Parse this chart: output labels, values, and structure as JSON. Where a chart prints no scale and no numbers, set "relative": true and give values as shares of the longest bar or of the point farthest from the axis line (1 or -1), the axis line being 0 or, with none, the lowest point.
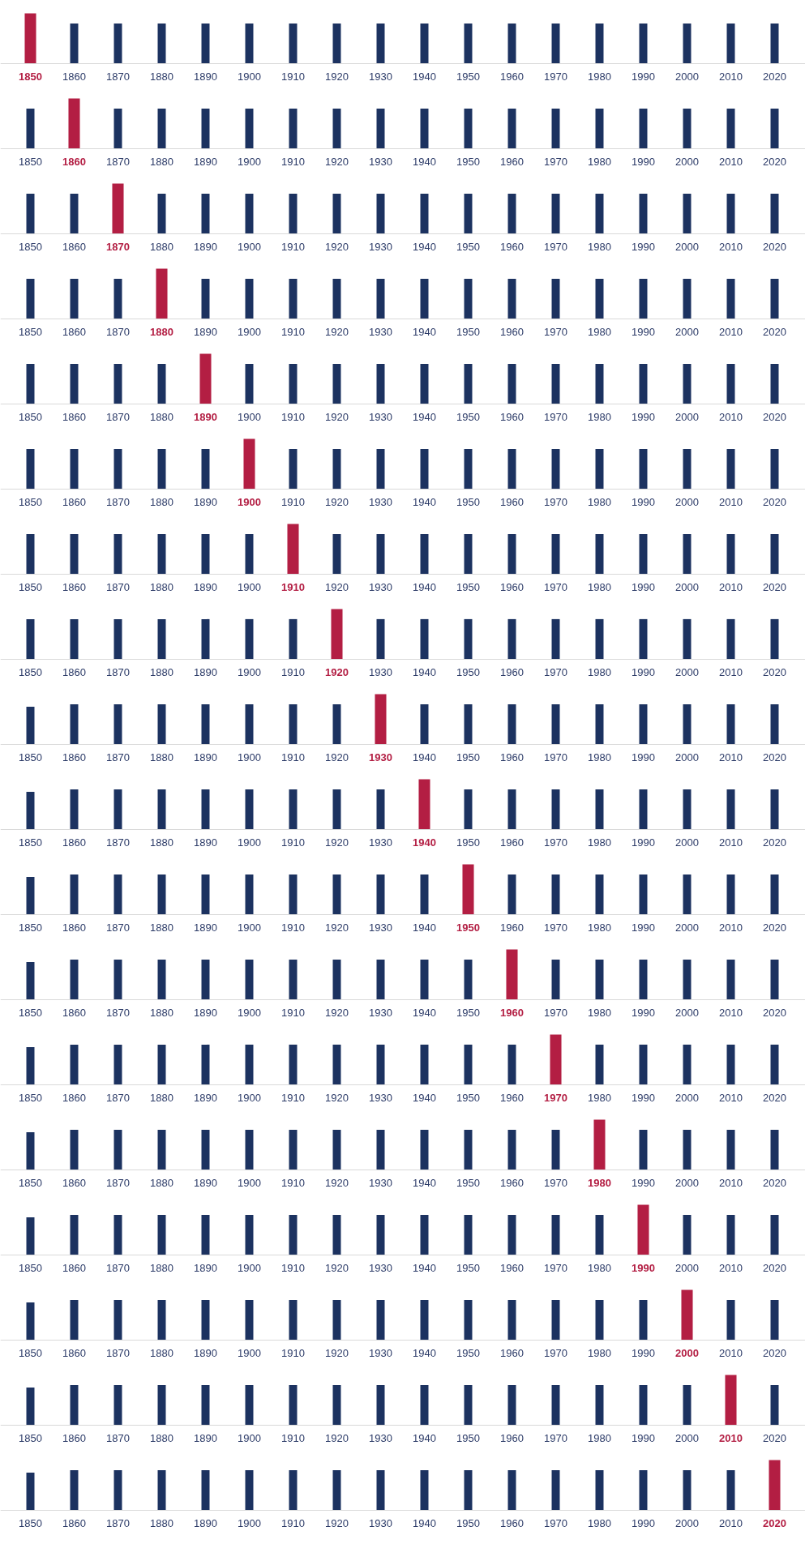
{
  "chart_data": [
    {
      "type": "bar",
      "relative": true,
      "categories": [
        "1850",
        "1860",
        "1870",
        "1880",
        "1890",
        "1900",
        "1910",
        "1920",
        "1930",
        "1940",
        "1950",
        "1960",
        "1970",
        "1980",
        "1990",
        "2000",
        "2010",
        "2020"
      ],
      "values": [
        1,
        0.8,
        0.8,
        0.8,
        0.8,
        0.8,
        0.8,
        0.8,
        0.8,
        0.8,
        0.8,
        0.8,
        0.8,
        0.8,
        0.8,
        0.8,
        0.8,
        0.8
      ],
      "colors": [
        "#b31e43",
        "#1c3260",
        "#1c3260",
        "#1c3260",
        "#1c3260",
        "#1c3260",
        "#1c3260",
        "#1c3260",
        "#1c3260",
        "#1c3260",
        "#1c3260",
        "#1c3260",
        "#1c3260",
        "#1c3260",
        "#1c3260",
        "#1c3260",
        "#1c3260",
        "#1c3260"
      ]
    },
    {
      "type": "bar",
      "relative": true,
      "categories": [
        "1850",
        "1860",
        "1870",
        "1880",
        "1890",
        "1900",
        "1910",
        "1920",
        "1930",
        "1940",
        "1950",
        "1960",
        "1970",
        "1980",
        "1990",
        "2000",
        "2010",
        "2020"
      ],
      "values": [
        0.8,
        1,
        0.8,
        0.8,
        0.8,
        0.8,
        0.8,
        0.8,
        0.8,
        0.8,
        0.8,
        0.8,
        0.8,
        0.8,
        0.8,
        0.8,
        0.8,
        0.8
      ],
      "colors": [
        "#1c3260",
        "#b31e43",
        "#1c3260",
        "#1c3260",
        "#1c3260",
        "#1c3260",
        "#1c3260",
        "#1c3260",
        "#1c3260",
        "#1c3260",
        "#1c3260",
        "#1c3260",
        "#1c3260",
        "#1c3260",
        "#1c3260",
        "#1c3260",
        "#1c3260",
        "#1c3260"
      ]
    },
    {
      "type": "bar",
      "relative": true,
      "categories": [
        "1850",
        "1860",
        "1870",
        "1880",
        "1890",
        "1900",
        "1910",
        "1920",
        "1930",
        "1940",
        "1950",
        "1960",
        "1970",
        "1980",
        "1990",
        "2000",
        "2010",
        "2020"
      ],
      "values": [
        0.8,
        0.8,
        1,
        0.8,
        0.8,
        0.8,
        0.8,
        0.8,
        0.8,
        0.8,
        0.8,
        0.8,
        0.8,
        0.8,
        0.8,
        0.8,
        0.8,
        0.8
      ],
      "colors": [
        "#1c3260",
        "#1c3260",
        "#b31e43",
        "#1c3260",
        "#1c3260",
        "#1c3260",
        "#1c3260",
        "#1c3260",
        "#1c3260",
        "#1c3260",
        "#1c3260",
        "#1c3260",
        "#1c3260",
        "#1c3260",
        "#1c3260",
        "#1c3260",
        "#1c3260",
        "#1c3260"
      ]
    },
    {
      "type": "bar",
      "relative": true,
      "categories": [
        "1850",
        "1860",
        "1870",
        "1880",
        "1890",
        "1900",
        "1910",
        "1920",
        "1930",
        "1940",
        "1950",
        "1960",
        "1970",
        "1980",
        "1990",
        "2000",
        "2010",
        "2020"
      ],
      "values": [
        0.8,
        0.8,
        0.8,
        1,
        0.8,
        0.8,
        0.8,
        0.8,
        0.8,
        0.8,
        0.8,
        0.8,
        0.8,
        0.8,
        0.8,
        0.8,
        0.8,
        0.8
      ],
      "colors": [
        "#1c3260",
        "#1c3260",
        "#1c3260",
        "#b31e43",
        "#1c3260",
        "#1c3260",
        "#1c3260",
        "#1c3260",
        "#1c3260",
        "#1c3260",
        "#1c3260",
        "#1c3260",
        "#1c3260",
        "#1c3260",
        "#1c3260",
        "#1c3260",
        "#1c3260",
        "#1c3260"
      ]
    },
    {
      "type": "bar",
      "relative": true,
      "categories": [
        "1850",
        "1860",
        "1870",
        "1880",
        "1890",
        "1900",
        "1910",
        "1920",
        "1930",
        "1940",
        "1950",
        "1960",
        "1970",
        "1980",
        "1990",
        "2000",
        "2010",
        "2020"
      ],
      "values": [
        0.8,
        0.8,
        0.8,
        0.8,
        1,
        0.8,
        0.8,
        0.8,
        0.8,
        0.8,
        0.8,
        0.8,
        0.8,
        0.8,
        0.8,
        0.8,
        0.8,
        0.8
      ],
      "colors": [
        "#1c3260",
        "#1c3260",
        "#1c3260",
        "#1c3260",
        "#b31e43",
        "#1c3260",
        "#1c3260",
        "#1c3260",
        "#1c3260",
        "#1c3260",
        "#1c3260",
        "#1c3260",
        "#1c3260",
        "#1c3260",
        "#1c3260",
        "#1c3260",
        "#1c3260",
        "#1c3260"
      ]
    },
    {
      "type": "bar",
      "relative": true,
      "categories": [
        "1850",
        "1860",
        "1870",
        "1880",
        "1890",
        "1900",
        "1910",
        "1920",
        "1930",
        "1940",
        "1950",
        "1960",
        "1970",
        "1980",
        "1990",
        "2000",
        "2010",
        "2020"
      ],
      "values": [
        0.8,
        0.8,
        0.8,
        0.8,
        0.8,
        1,
        0.8,
        0.8,
        0.8,
        0.8,
        0.8,
        0.8,
        0.8,
        0.8,
        0.8,
        0.8,
        0.8,
        0.8
      ],
      "colors": [
        "#1c3260",
        "#1c3260",
        "#1c3260",
        "#1c3260",
        "#1c3260",
        "#b31e43",
        "#1c3260",
        "#1c3260",
        "#1c3260",
        "#1c3260",
        "#1c3260",
        "#1c3260",
        "#1c3260",
        "#1c3260",
        "#1c3260",
        "#1c3260",
        "#1c3260",
        "#1c3260"
      ]
    },
    {
      "type": "bar",
      "relative": true,
      "categories": [
        "1850",
        "1860",
        "1870",
        "1880",
        "1890",
        "1900",
        "1910",
        "1920",
        "1930",
        "1940",
        "1950",
        "1960",
        "1970",
        "1980",
        "1990",
        "2000",
        "2010",
        "2020"
      ],
      "values": [
        0.8,
        0.8,
        0.8,
        0.8,
        0.8,
        0.8,
        1,
        0.8,
        0.8,
        0.8,
        0.8,
        0.8,
        0.8,
        0.8,
        0.8,
        0.8,
        0.8,
        0.8
      ],
      "colors": [
        "#1c3260",
        "#1c3260",
        "#1c3260",
        "#1c3260",
        "#1c3260",
        "#1c3260",
        "#b31e43",
        "#1c3260",
        "#1c3260",
        "#1c3260",
        "#1c3260",
        "#1c3260",
        "#1c3260",
        "#1c3260",
        "#1c3260",
        "#1c3260",
        "#1c3260",
        "#1c3260"
      ]
    },
    {
      "type": "bar",
      "relative": true,
      "categories": [
        "1850",
        "1860",
        "1870",
        "1880",
        "1890",
        "1900",
        "1910",
        "1920",
        "1930",
        "1940",
        "1950",
        "1960",
        "1970",
        "1980",
        "1990",
        "2000",
        "2010",
        "2020"
      ],
      "values": [
        0.8,
        0.8,
        0.8,
        0.8,
        0.8,
        0.8,
        0.8,
        1,
        0.8,
        0.8,
        0.8,
        0.8,
        0.8,
        0.8,
        0.8,
        0.8,
        0.8,
        0.8
      ],
      "colors": [
        "#1c3260",
        "#1c3260",
        "#1c3260",
        "#1c3260",
        "#1c3260",
        "#1c3260",
        "#1c3260",
        "#b31e43",
        "#1c3260",
        "#1c3260",
        "#1c3260",
        "#1c3260",
        "#1c3260",
        "#1c3260",
        "#1c3260",
        "#1c3260",
        "#1c3260",
        "#1c3260"
      ]
    },
    {
      "type": "bar",
      "relative": true,
      "categories": [
        "1850",
        "1860",
        "1870",
        "1880",
        "1890",
        "1900",
        "1910",
        "1920",
        "1930",
        "1940",
        "1950",
        "1960",
        "1970",
        "1980",
        "1990",
        "2000",
        "2010",
        "2020"
      ],
      "values": [
        0.75,
        0.8,
        0.8,
        0.8,
        0.8,
        0.8,
        0.8,
        0.8,
        1,
        0.8,
        0.8,
        0.8,
        0.8,
        0.8,
        0.8,
        0.8,
        0.8,
        0.8
      ],
      "colors": [
        "#1c3260",
        "#1c3260",
        "#1c3260",
        "#1c3260",
        "#1c3260",
        "#1c3260",
        "#1c3260",
        "#1c3260",
        "#b31e43",
        "#1c3260",
        "#1c3260",
        "#1c3260",
        "#1c3260",
        "#1c3260",
        "#1c3260",
        "#1c3260",
        "#1c3260",
        "#1c3260"
      ]
    },
    {
      "type": "bar",
      "relative": true,
      "categories": [
        "1850",
        "1860",
        "1870",
        "1880",
        "1890",
        "1900",
        "1910",
        "1920",
        "1930",
        "1940",
        "1950",
        "1960",
        "1970",
        "1980",
        "1990",
        "2000",
        "2010",
        "2020"
      ],
      "values": [
        0.75,
        0.8,
        0.8,
        0.8,
        0.8,
        0.8,
        0.8,
        0.8,
        0.8,
        1,
        0.8,
        0.8,
        0.8,
        0.8,
        0.8,
        0.8,
        0.8,
        0.8
      ],
      "colors": [
        "#1c3260",
        "#1c3260",
        "#1c3260",
        "#1c3260",
        "#1c3260",
        "#1c3260",
        "#1c3260",
        "#1c3260",
        "#1c3260",
        "#b31e43",
        "#1c3260",
        "#1c3260",
        "#1c3260",
        "#1c3260",
        "#1c3260",
        "#1c3260",
        "#1c3260",
        "#1c3260"
      ]
    },
    {
      "type": "bar",
      "relative": true,
      "categories": [
        "1850",
        "1860",
        "1870",
        "1880",
        "1890",
        "1900",
        "1910",
        "1920",
        "1930",
        "1940",
        "1950",
        "1960",
        "1970",
        "1980",
        "1990",
        "2000",
        "2010",
        "2020"
      ],
      "values": [
        0.75,
        0.8,
        0.8,
        0.8,
        0.8,
        0.8,
        0.8,
        0.8,
        0.8,
        0.8,
        1,
        0.8,
        0.8,
        0.8,
        0.8,
        0.8,
        0.8,
        0.8
      ],
      "colors": [
        "#1c3260",
        "#1c3260",
        "#1c3260",
        "#1c3260",
        "#1c3260",
        "#1c3260",
        "#1c3260",
        "#1c3260",
        "#1c3260",
        "#1c3260",
        "#b31e43",
        "#1c3260",
        "#1c3260",
        "#1c3260",
        "#1c3260",
        "#1c3260",
        "#1c3260",
        "#1c3260"
      ]
    },
    {
      "type": "bar",
      "relative": true,
      "categories": [
        "1850",
        "1860",
        "1870",
        "1880",
        "1890",
        "1900",
        "1910",
        "1920",
        "1930",
        "1940",
        "1950",
        "1960",
        "1970",
        "1980",
        "1990",
        "2000",
        "2010",
        "2020"
      ],
      "values": [
        0.75,
        0.8,
        0.8,
        0.8,
        0.8,
        0.8,
        0.8,
        0.8,
        0.8,
        0.8,
        0.8,
        1,
        0.8,
        0.8,
        0.8,
        0.8,
        0.8,
        0.8
      ],
      "colors": [
        "#1c3260",
        "#1c3260",
        "#1c3260",
        "#1c3260",
        "#1c3260",
        "#1c3260",
        "#1c3260",
        "#1c3260",
        "#1c3260",
        "#1c3260",
        "#1c3260",
        "#b31e43",
        "#1c3260",
        "#1c3260",
        "#1c3260",
        "#1c3260",
        "#1c3260",
        "#1c3260"
      ]
    },
    {
      "type": "bar",
      "relative": true,
      "categories": [
        "1850",
        "1860",
        "1870",
        "1880",
        "1890",
        "1900",
        "1910",
        "1920",
        "1930",
        "1940",
        "1950",
        "1960",
        "1970",
        "1980",
        "1990",
        "2000",
        "2010",
        "2020"
      ],
      "values": [
        0.75,
        0.8,
        0.8,
        0.8,
        0.8,
        0.8,
        0.8,
        0.8,
        0.8,
        0.8,
        0.8,
        0.8,
        1,
        0.8,
        0.8,
        0.8,
        0.8,
        0.8
      ],
      "colors": [
        "#1c3260",
        "#1c3260",
        "#1c3260",
        "#1c3260",
        "#1c3260",
        "#1c3260",
        "#1c3260",
        "#1c3260",
        "#1c3260",
        "#1c3260",
        "#1c3260",
        "#1c3260",
        "#b31e43",
        "#1c3260",
        "#1c3260",
        "#1c3260",
        "#1c3260",
        "#1c3260"
      ]
    },
    {
      "type": "bar",
      "relative": true,
      "categories": [
        "1850",
        "1860",
        "1870",
        "1880",
        "1890",
        "1900",
        "1910",
        "1920",
        "1930",
        "1940",
        "1950",
        "1960",
        "1970",
        "1980",
        "1990",
        "2000",
        "2010",
        "2020"
      ],
      "values": [
        0.75,
        0.8,
        0.8,
        0.8,
        0.8,
        0.8,
        0.8,
        0.8,
        0.8,
        0.8,
        0.8,
        0.8,
        0.8,
        1,
        0.8,
        0.8,
        0.8,
        0.8
      ],
      "colors": [
        "#1c3260",
        "#1c3260",
        "#1c3260",
        "#1c3260",
        "#1c3260",
        "#1c3260",
        "#1c3260",
        "#1c3260",
        "#1c3260",
        "#1c3260",
        "#1c3260",
        "#1c3260",
        "#1c3260",
        "#b31e43",
        "#1c3260",
        "#1c3260",
        "#1c3260",
        "#1c3260"
      ]
    },
    {
      "type": "bar",
      "relative": true,
      "categories": [
        "1850",
        "1860",
        "1870",
        "1880",
        "1890",
        "1900",
        "1910",
        "1920",
        "1930",
        "1940",
        "1950",
        "1960",
        "1970",
        "1980",
        "1990",
        "2000",
        "2010",
        "2020"
      ],
      "values": [
        0.75,
        0.8,
        0.8,
        0.8,
        0.8,
        0.8,
        0.8,
        0.8,
        0.8,
        0.8,
        0.8,
        0.8,
        0.8,
        0.8,
        1,
        0.8,
        0.8,
        0.8
      ],
      "colors": [
        "#1c3260",
        "#1c3260",
        "#1c3260",
        "#1c3260",
        "#1c3260",
        "#1c3260",
        "#1c3260",
        "#1c3260",
        "#1c3260",
        "#1c3260",
        "#1c3260",
        "#1c3260",
        "#1c3260",
        "#1c3260",
        "#b31e43",
        "#1c3260",
        "#1c3260",
        "#1c3260"
      ]
    },
    {
      "type": "bar",
      "relative": true,
      "categories": [
        "1850",
        "1860",
        "1870",
        "1880",
        "1890",
        "1900",
        "1910",
        "1920",
        "1930",
        "1940",
        "1950",
        "1960",
        "1970",
        "1980",
        "1990",
        "2000",
        "2010",
        "2020"
      ],
      "values": [
        0.75,
        0.8,
        0.8,
        0.8,
        0.8,
        0.8,
        0.8,
        0.8,
        0.8,
        0.8,
        0.8,
        0.8,
        0.8,
        0.8,
        0.8,
        1,
        0.8,
        0.8
      ],
      "colors": [
        "#1c3260",
        "#1c3260",
        "#1c3260",
        "#1c3260",
        "#1c3260",
        "#1c3260",
        "#1c3260",
        "#1c3260",
        "#1c3260",
        "#1c3260",
        "#1c3260",
        "#1c3260",
        "#1c3260",
        "#1c3260",
        "#1c3260",
        "#b31e43",
        "#1c3260",
        "#1c3260"
      ]
    },
    {
      "type": "bar",
      "relative": true,
      "categories": [
        "1850",
        "1860",
        "1870",
        "1880",
        "1890",
        "1900",
        "1910",
        "1920",
        "1930",
        "1940",
        "1950",
        "1960",
        "1970",
        "1980",
        "1990",
        "2000",
        "2010",
        "2020"
      ],
      "values": [
        0.75,
        0.8,
        0.8,
        0.8,
        0.8,
        0.8,
        0.8,
        0.8,
        0.8,
        0.8,
        0.8,
        0.8,
        0.8,
        0.8,
        0.8,
        0.8,
        1,
        0.8
      ],
      "colors": [
        "#1c3260",
        "#1c3260",
        "#1c3260",
        "#1c3260",
        "#1c3260",
        "#1c3260",
        "#1c3260",
        "#1c3260",
        "#1c3260",
        "#1c3260",
        "#1c3260",
        "#1c3260",
        "#1c3260",
        "#1c3260",
        "#1c3260",
        "#1c3260",
        "#b31e43",
        "#1c3260"
      ]
    },
    {
      "type": "bar",
      "relative": true,
      "categories": [
        "1850",
        "1860",
        "1870",
        "1880",
        "1890",
        "1900",
        "1910",
        "1920",
        "1930",
        "1940",
        "1950",
        "1960",
        "1970",
        "1980",
        "1990",
        "2000",
        "2010",
        "2020"
      ],
      "values": [
        0.75,
        0.8,
        0.8,
        0.8,
        0.8,
        0.8,
        0.8,
        0.8,
        0.8,
        0.8,
        0.8,
        0.8,
        0.8,
        0.8,
        0.8,
        0.8,
        0.8,
        1
      ],
      "colors": [
        "#1c3260",
        "#1c3260",
        "#1c3260",
        "#1c3260",
        "#1c3260",
        "#1c3260",
        "#1c3260",
        "#1c3260",
        "#1c3260",
        "#1c3260",
        "#1c3260",
        "#1c3260",
        "#1c3260",
        "#1c3260",
        "#1c3260",
        "#1c3260",
        "#1c3260",
        "#b31e43"
      ]
    }
  ]
}
